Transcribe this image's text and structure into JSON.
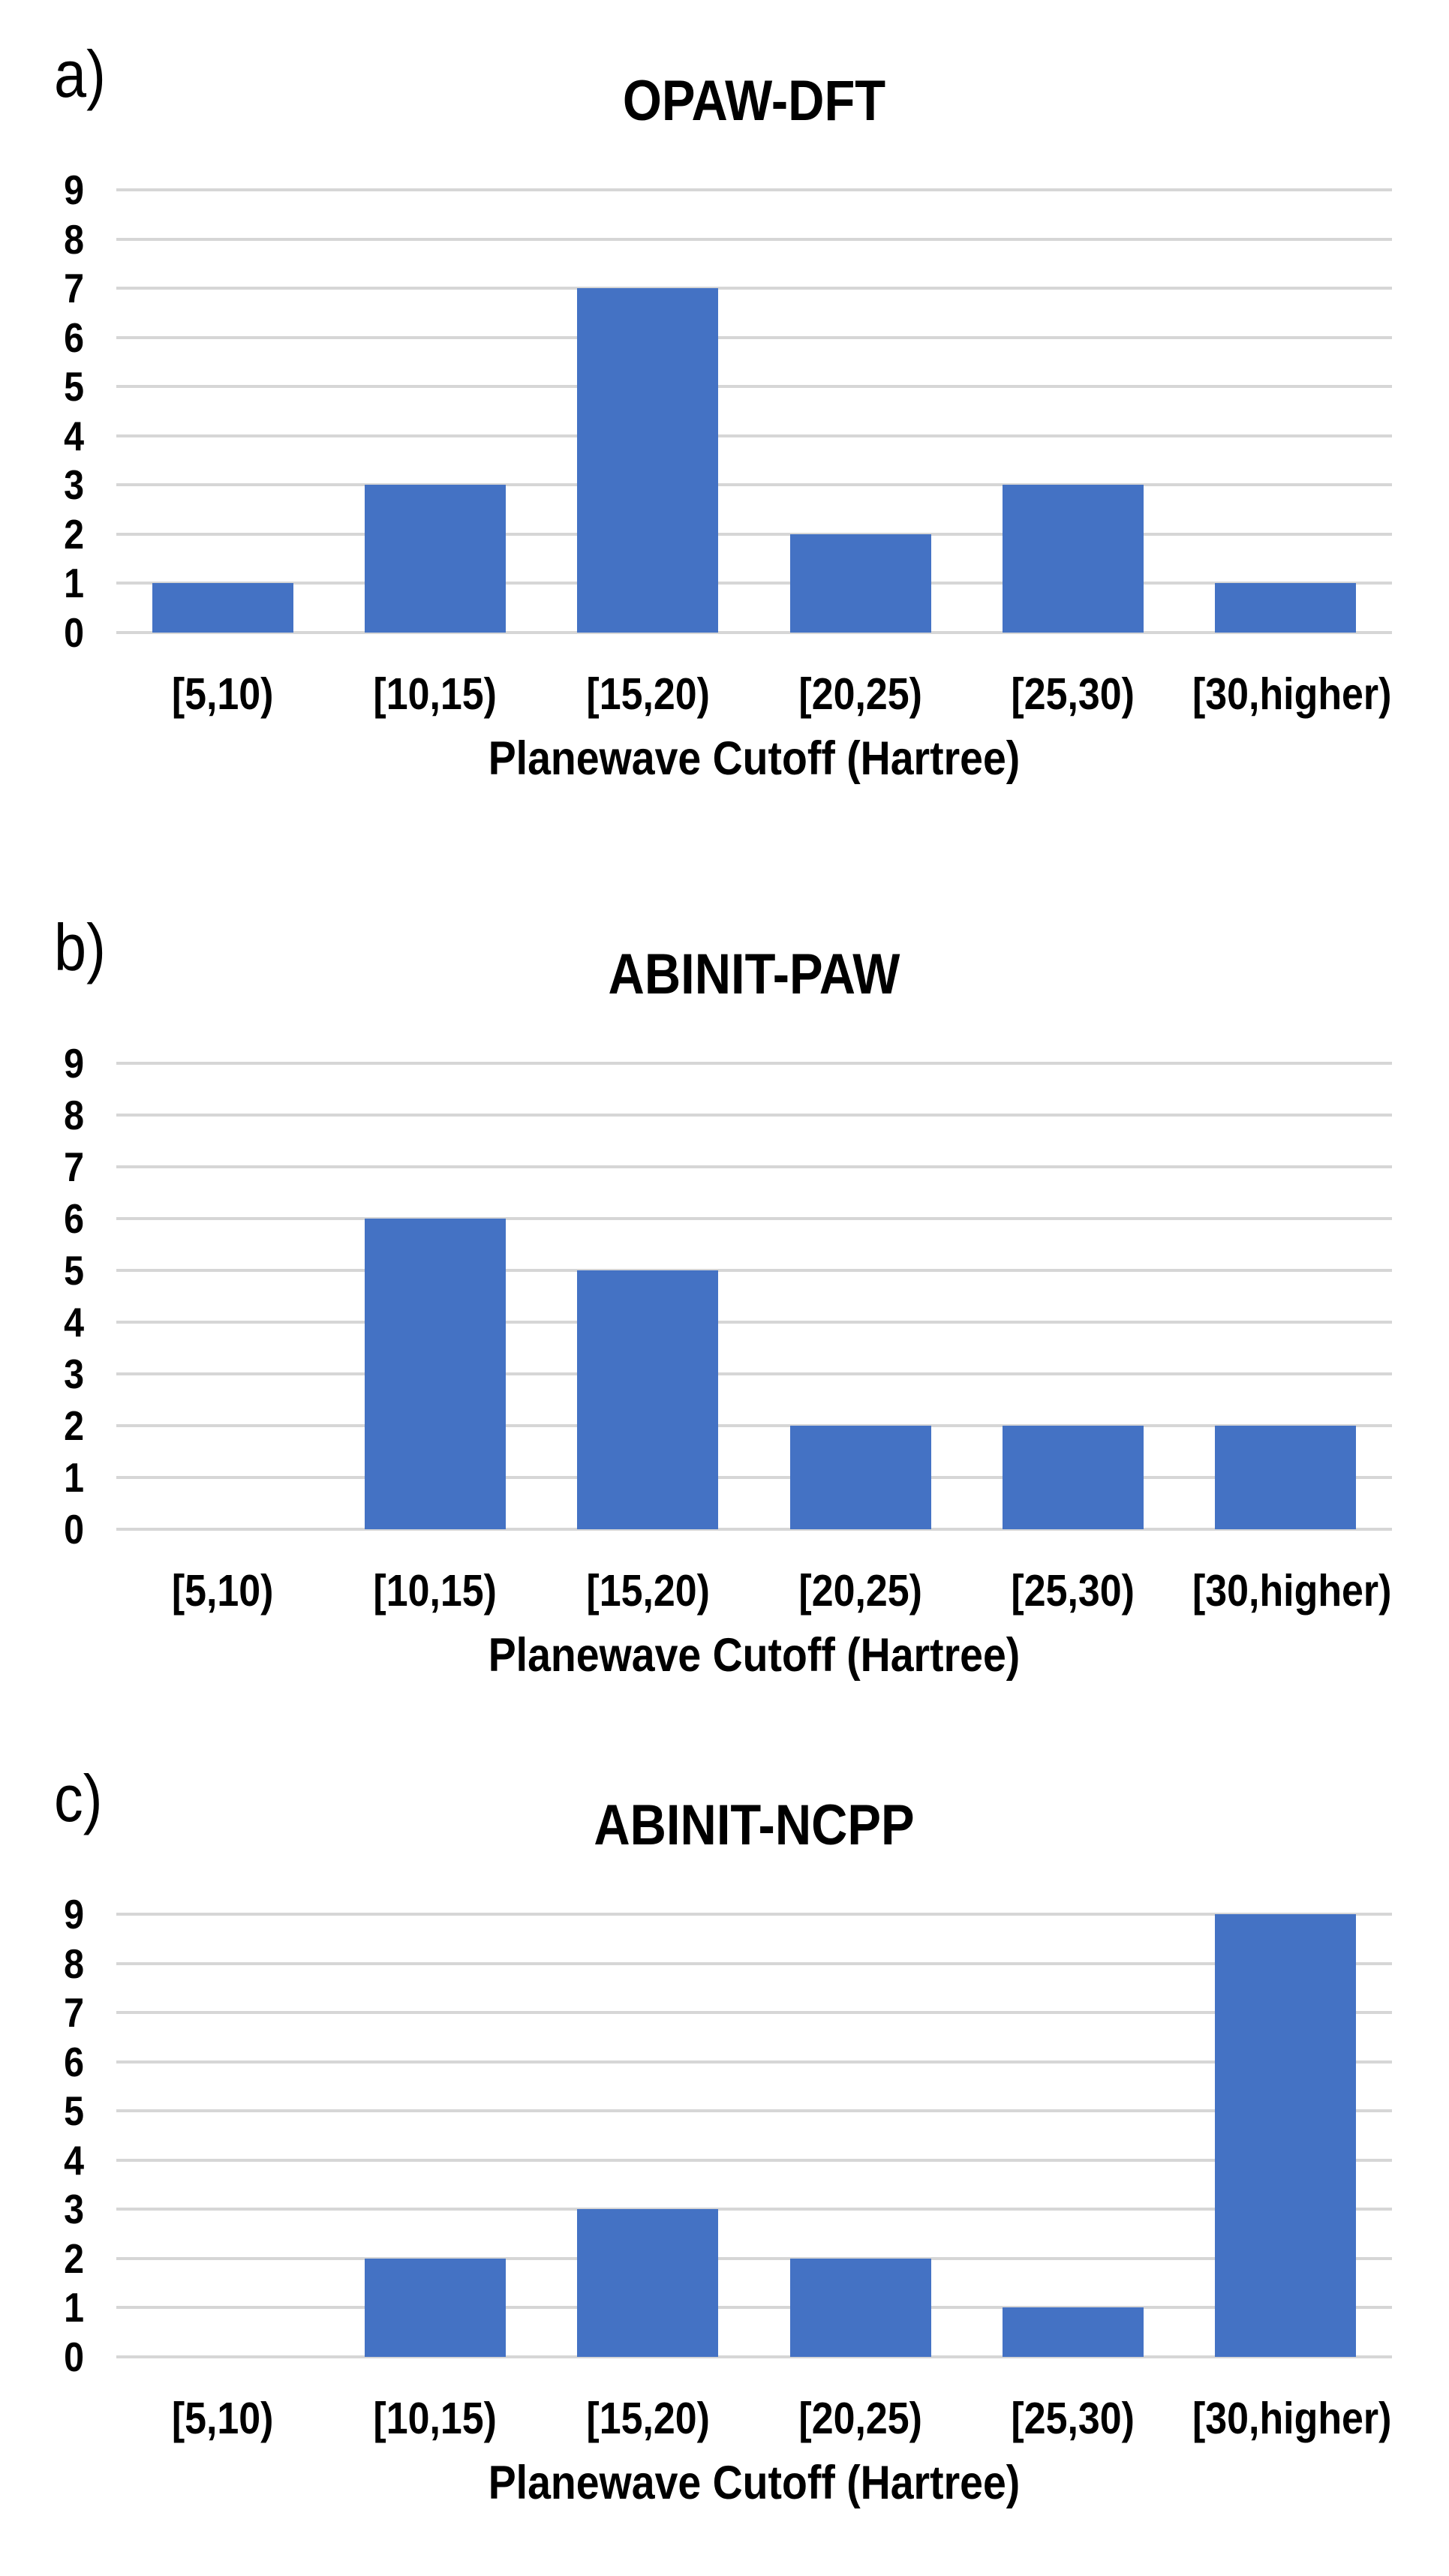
{
  "figure": {
    "background": "#FFFFFF",
    "text_color": "#000000",
    "bar_color": "#4472C4",
    "gridline_color": "#D6D6D6",
    "xlabel": "Planewave Cutoff (Hartree)"
  },
  "chart_data": [
    {
      "type": "bar",
      "panel_label": "a)",
      "title": "OPAW-DFT",
      "categories": [
        "[5,10)",
        "[10,15)",
        "[15,20)",
        "[20,25)",
        "[25,30)",
        "[30,higher)"
      ],
      "values": [
        1,
        3,
        7,
        2,
        3,
        1
      ],
      "xlabel": "Planewave Cutoff (Hartree)",
      "ylabel": "",
      "ylim": [
        0,
        9
      ],
      "yticks": [
        0,
        1,
        2,
        3,
        4,
        5,
        6,
        7,
        8,
        9
      ],
      "grid": true,
      "legend": false,
      "bar_color": "#4472C4",
      "gridline_color": "#D6D6D6"
    },
    {
      "type": "bar",
      "panel_label": "b)",
      "title": "ABINIT-PAW",
      "categories": [
        "[5,10)",
        "[10,15)",
        "[15,20)",
        "[20,25)",
        "[25,30)",
        "[30,higher)"
      ],
      "values": [
        0,
        6,
        5,
        2,
        2,
        2
      ],
      "xlabel": "Planewave Cutoff (Hartree)",
      "ylabel": "",
      "ylim": [
        0,
        9
      ],
      "yticks": [
        0,
        1,
        2,
        3,
        4,
        5,
        6,
        7,
        8,
        9
      ],
      "grid": true,
      "legend": false,
      "bar_color": "#4472C4",
      "gridline_color": "#D6D6D6"
    },
    {
      "type": "bar",
      "panel_label": "c)",
      "title": "ABINIT-NCPP",
      "categories": [
        "[5,10)",
        "[10,15)",
        "[15,20)",
        "[20,25)",
        "[25,30)",
        "[30,higher)"
      ],
      "values": [
        0,
        2,
        3,
        2,
        1,
        9
      ],
      "xlabel": "Planewave Cutoff (Hartree)",
      "ylabel": "",
      "ylim": [
        0,
        9
      ],
      "yticks": [
        0,
        1,
        2,
        3,
        4,
        5,
        6,
        7,
        8,
        9
      ],
      "grid": true,
      "legend": false,
      "bar_color": "#4472C4",
      "gridline_color": "#D6D6D6"
    }
  ]
}
